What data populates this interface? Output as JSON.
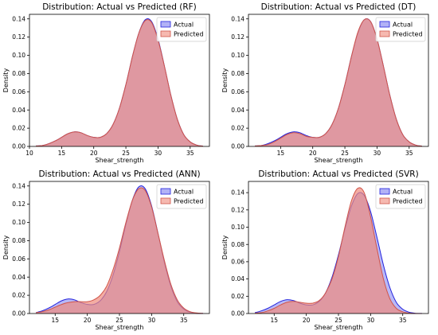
{
  "colors": {
    "actual_fill": "#7f7ff0",
    "actual_line": "#2222dd",
    "predicted_fill": "#f08a7c",
    "predicted_line": "#d0554a",
    "overlap": "#e070b8"
  },
  "chart_data": [
    {
      "type": "area",
      "title": "Distribution: Actual vs Predicted (RF)",
      "xlabel": "Shear_strength",
      "ylabel": "Density",
      "xlim": [
        10,
        38
      ],
      "ylim": [
        0,
        0.145
      ],
      "xticks": [
        10,
        15,
        20,
        25,
        30,
        35
      ],
      "yticks": [
        0.0,
        0.02,
        0.04,
        0.06,
        0.08,
        0.1,
        0.12,
        0.14
      ],
      "xtick_labels": [
        "10",
        "15",
        "20",
        "25",
        "30",
        "35"
      ],
      "ytick_labels": [
        "0.00",
        "0.02",
        "0.04",
        "0.06",
        "0.08",
        "0.10",
        "0.12",
        "0.14"
      ],
      "legend": {
        "position": "top-right",
        "entries": [
          "Actual",
          "Predicted"
        ]
      },
      "grid": false,
      "x": [
        11,
        12,
        13,
        14,
        15,
        16,
        17,
        18,
        19,
        20,
        21,
        22,
        23,
        24,
        25,
        26,
        27,
        28,
        29,
        30,
        31,
        32,
        33,
        34,
        35,
        36,
        37
      ],
      "series": [
        {
          "name": "Actual",
          "values": [
            0.0005,
            0.001,
            0.003,
            0.006,
            0.01,
            0.014,
            0.016,
            0.015,
            0.012,
            0.01,
            0.01,
            0.014,
            0.024,
            0.042,
            0.068,
            0.098,
            0.124,
            0.139,
            0.137,
            0.118,
            0.088,
            0.056,
            0.03,
            0.013,
            0.005,
            0.0015,
            0.0003
          ]
        },
        {
          "name": "Predicted",
          "values": [
            0.0005,
            0.001,
            0.003,
            0.006,
            0.01,
            0.014,
            0.016,
            0.015,
            0.012,
            0.01,
            0.01,
            0.014,
            0.024,
            0.042,
            0.068,
            0.098,
            0.124,
            0.138,
            0.136,
            0.117,
            0.088,
            0.056,
            0.03,
            0.013,
            0.005,
            0.0015,
            0.0003
          ]
        }
      ]
    },
    {
      "type": "area",
      "title": "Distribution: Actual vs Predicted (DT)",
      "xlabel": "Shear_strength",
      "ylabel": "Density",
      "xlim": [
        10,
        38
      ],
      "ylim": [
        0,
        0.145
      ],
      "xticks": [
        15,
        20,
        25,
        30,
        35
      ],
      "yticks": [
        0.0,
        0.02,
        0.04,
        0.06,
        0.08,
        0.1,
        0.12,
        0.14
      ],
      "xtick_labels": [
        "15",
        "20",
        "25",
        "30",
        "35"
      ],
      "ytick_labels": [
        "0.00",
        "0.02",
        "0.04",
        "0.06",
        "0.08",
        "0.10",
        "0.12",
        "0.14"
      ],
      "legend": {
        "position": "top-right",
        "entries": [
          "Actual",
          "Predicted"
        ]
      },
      "grid": false,
      "x": [
        11,
        12,
        13,
        14,
        15,
        16,
        17,
        18,
        19,
        20,
        21,
        22,
        23,
        24,
        25,
        26,
        27,
        28,
        29,
        30,
        31,
        32,
        33,
        34,
        35,
        36,
        37
      ],
      "series": [
        {
          "name": "Actual",
          "values": [
            0.0005,
            0.001,
            0.003,
            0.006,
            0.01,
            0.014,
            0.016,
            0.015,
            0.012,
            0.01,
            0.01,
            0.014,
            0.024,
            0.042,
            0.068,
            0.098,
            0.124,
            0.139,
            0.137,
            0.118,
            0.088,
            0.056,
            0.03,
            0.013,
            0.005,
            0.0015,
            0.0003
          ]
        },
        {
          "name": "Predicted",
          "values": [
            0.0005,
            0.001,
            0.002,
            0.005,
            0.009,
            0.013,
            0.015,
            0.014,
            0.011,
            0.01,
            0.01,
            0.014,
            0.024,
            0.042,
            0.068,
            0.098,
            0.125,
            0.139,
            0.137,
            0.118,
            0.088,
            0.056,
            0.03,
            0.013,
            0.005,
            0.0015,
            0.0003
          ]
        }
      ]
    },
    {
      "type": "area",
      "title": "Distribution: Actual vs Predicted (ANN)",
      "xlabel": "Shear_strength",
      "ylabel": "Density",
      "xlim": [
        11,
        39
      ],
      "ylim": [
        0,
        0.145
      ],
      "xticks": [
        15,
        20,
        25,
        30,
        35
      ],
      "yticks": [
        0.0,
        0.02,
        0.04,
        0.06,
        0.08,
        0.1,
        0.12,
        0.14
      ],
      "xtick_labels": [
        "15",
        "20",
        "25",
        "30",
        "35"
      ],
      "ytick_labels": [
        "0.00",
        "0.02",
        "0.04",
        "0.06",
        "0.08",
        "0.10",
        "0.12",
        "0.14"
      ],
      "legend": {
        "position": "top-right",
        "entries": [
          "Actual",
          "Predicted"
        ]
      },
      "grid": false,
      "x": [
        12,
        13,
        14,
        15,
        16,
        17,
        18,
        19,
        20,
        21,
        22,
        23,
        24,
        25,
        26,
        27,
        28,
        29,
        30,
        31,
        32,
        33,
        34,
        35,
        36,
        37,
        38
      ],
      "series": [
        {
          "name": "Actual",
          "values": [
            0.001,
            0.003,
            0.006,
            0.01,
            0.014,
            0.016,
            0.015,
            0.012,
            0.01,
            0.01,
            0.014,
            0.024,
            0.042,
            0.068,
            0.098,
            0.124,
            0.139,
            0.137,
            0.118,
            0.088,
            0.056,
            0.03,
            0.013,
            0.005,
            0.0015,
            0.0003,
            0.0001
          ]
        },
        {
          "name": "Predicted",
          "values": [
            0.001,
            0.002,
            0.004,
            0.007,
            0.01,
            0.012,
            0.013,
            0.013,
            0.013,
            0.015,
            0.02,
            0.03,
            0.048,
            0.072,
            0.1,
            0.124,
            0.137,
            0.135,
            0.117,
            0.088,
            0.058,
            0.032,
            0.015,
            0.006,
            0.002,
            0.0006,
            0.0002
          ]
        }
      ]
    },
    {
      "type": "area",
      "title": "Distribution: Actual vs Predicted (SVR)",
      "xlabel": "Shear_strength",
      "ylabel": "Density",
      "xlim": [
        11,
        39
      ],
      "ylim": [
        0,
        0.153
      ],
      "xticks": [
        15,
        20,
        25,
        30,
        35
      ],
      "yticks": [
        0.0,
        0.02,
        0.04,
        0.06,
        0.08,
        0.1,
        0.12,
        0.14
      ],
      "xtick_labels": [
        "15",
        "20",
        "25",
        "30",
        "35"
      ],
      "ytick_labels": [
        "0.00",
        "0.02",
        "0.04",
        "0.06",
        "0.08",
        "0.10",
        "0.12",
        "0.14"
      ],
      "legend": {
        "position": "top-right",
        "entries": [
          "Actual",
          "Predicted"
        ]
      },
      "grid": false,
      "x": [
        12,
        13,
        14,
        15,
        16,
        17,
        18,
        19,
        20,
        21,
        22,
        23,
        24,
        25,
        26,
        27,
        28,
        29,
        30,
        31,
        32,
        33,
        34,
        35,
        36,
        37,
        38
      ],
      "series": [
        {
          "name": "Actual",
          "values": [
            0.001,
            0.003,
            0.006,
            0.01,
            0.014,
            0.016,
            0.015,
            0.012,
            0.01,
            0.01,
            0.014,
            0.024,
            0.042,
            0.068,
            0.098,
            0.124,
            0.139,
            0.137,
            0.118,
            0.088,
            0.056,
            0.03,
            0.013,
            0.005,
            0.0015,
            0.0003,
            0.0001
          ]
        },
        {
          "name": "Predicted",
          "values": [
            0.0005,
            0.001,
            0.003,
            0.006,
            0.01,
            0.013,
            0.014,
            0.013,
            0.012,
            0.012,
            0.015,
            0.024,
            0.04,
            0.066,
            0.1,
            0.13,
            0.145,
            0.14,
            0.112,
            0.075,
            0.04,
            0.017,
            0.006,
            0.002,
            0.0005,
            0.0001,
            0.0
          ]
        }
      ]
    }
  ]
}
